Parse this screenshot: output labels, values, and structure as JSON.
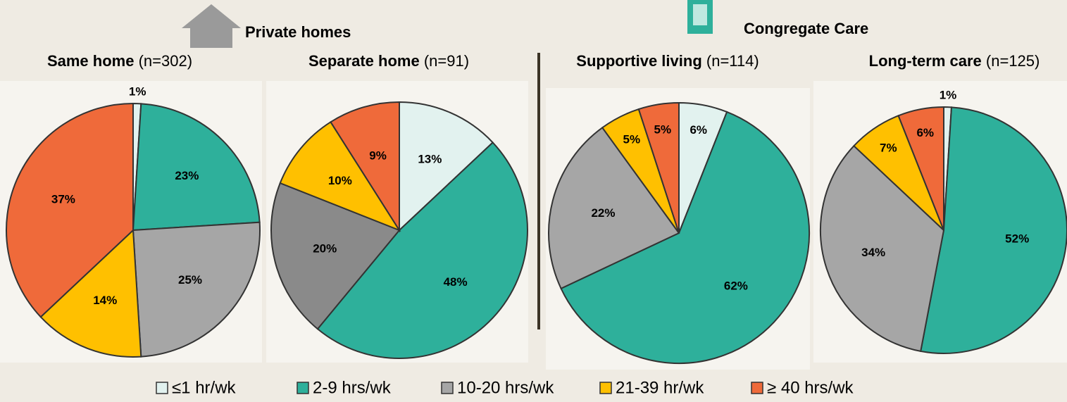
{
  "groups": [
    "Private homes",
    "Congregate Care"
  ],
  "legend": {
    "labels": [
      "≤1 hr/wk",
      "2-9 hrs/wk",
      "10-20 hrs/wk",
      "21-39 hr/wk",
      "≥ 40 hrs/wk"
    ]
  },
  "chart_data": [
    {
      "type": "pie",
      "title": "Same home",
      "subtitle": "(n=302)",
      "values": [
        1,
        23,
        25,
        14,
        37
      ],
      "value_labels": [
        "1%",
        "23%",
        "25%",
        "14%",
        "37%"
      ],
      "colors": [
        "#e2f2ef",
        "#2eb09b",
        "#a6a6a6",
        "#ffc000",
        "#ef6a3a"
      ]
    },
    {
      "type": "pie",
      "title": "Separate home",
      "subtitle": "(n=91)",
      "values": [
        13,
        48,
        20,
        10,
        9
      ],
      "value_labels": [
        "13%",
        "48%",
        "20%",
        "10%",
        "9%"
      ],
      "colors": [
        "#e2f2ef",
        "#2eb09b",
        "#8a8a8a",
        "#ffc000",
        "#ef6a3a"
      ]
    },
    {
      "type": "pie",
      "title": "Supportive living",
      "subtitle": "(n=114)",
      "values": [
        6,
        62,
        22,
        5,
        5
      ],
      "value_labels": [
        "6%",
        "62%",
        "22%",
        "5%",
        "5%"
      ],
      "colors": [
        "#e2f2ef",
        "#2eb09b",
        "#a6a6a6",
        "#ffc000",
        "#ef6a3a"
      ]
    },
    {
      "type": "pie",
      "title": "Long-term care",
      "subtitle": "(n=125)",
      "values": [
        1,
        52,
        34,
        7,
        6
      ],
      "value_labels": [
        "1%",
        "52%",
        "34%",
        "7%",
        "6%"
      ],
      "colors": [
        "#e2f2ef",
        "#2eb09b",
        "#a6a6a6",
        "#ffc000",
        "#ef6a3a"
      ]
    }
  ]
}
